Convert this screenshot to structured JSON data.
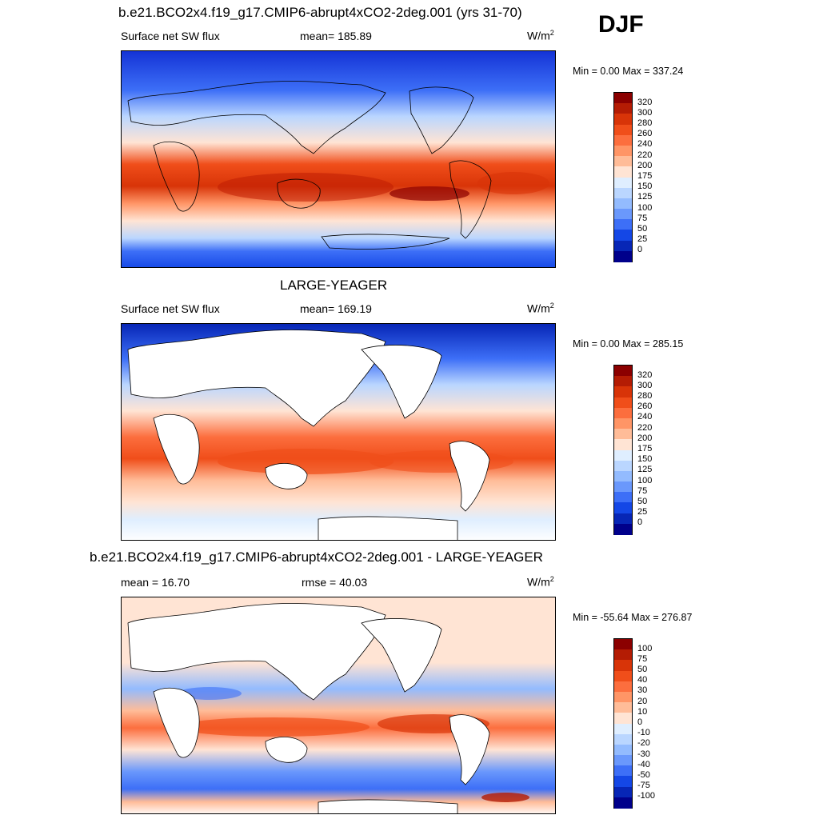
{
  "season": "DJF",
  "panels": [
    {
      "title": "b.e21.BCO2x4.f19_g17.CMIP6-abrupt4xCO2-2deg.001 (yrs 31-70)",
      "left_label": "Surface net SW flux",
      "center_label": "mean= 185.89",
      "units_base": "W/m",
      "units_exp": "2",
      "stats": "Min =   0.00 Max = 337.24",
      "land_masked": false,
      "colorbar": {
        "labels": [
          "320",
          "300",
          "280",
          "260",
          "240",
          "220",
          "200",
          "175",
          "150",
          "125",
          "100",
          "75",
          "50",
          "25",
          "0"
        ],
        "colors": [
          "#8b0000",
          "#b41c04",
          "#d83408",
          "#f04e1a",
          "#fc6e3e",
          "#ff9566",
          "#ffbc98",
          "#ffe4d4",
          "#dfeeff",
          "#bad6ff",
          "#93bbfe",
          "#6a98fc",
          "#3d6ff7",
          "#1447e6",
          "#0726b6",
          "#00008b"
        ]
      }
    },
    {
      "title": "LARGE-YEAGER",
      "left_label": "Surface net SW flux",
      "center_label": "mean= 169.19",
      "units_base": "W/m",
      "units_exp": "2",
      "stats": "Min =   0.00 Max = 285.15",
      "land_masked": true,
      "colorbar": {
        "labels": [
          "320",
          "300",
          "280",
          "260",
          "240",
          "220",
          "200",
          "175",
          "150",
          "125",
          "100",
          "75",
          "50",
          "25",
          "0"
        ],
        "colors": [
          "#8b0000",
          "#b41c04",
          "#d83408",
          "#f04e1a",
          "#fc6e3e",
          "#ff9566",
          "#ffbc98",
          "#ffe4d4",
          "#dfeeff",
          "#bad6ff",
          "#93bbfe",
          "#6a98fc",
          "#3d6ff7",
          "#1447e6",
          "#0726b6",
          "#00008b"
        ]
      }
    },
    {
      "title": "b.e21.BCO2x4.f19_g17.CMIP6-abrupt4xCO2-2deg.001 - LARGE-YEAGER",
      "left_label": "mean =  16.70",
      "center_label": "rmse =  40.03",
      "units_base": "W/m",
      "units_exp": "2",
      "stats": "Min = -55.64 Max = 276.87",
      "land_masked": true,
      "colorbar": {
        "labels": [
          "100",
          "75",
          "50",
          "40",
          "30",
          "20",
          "10",
          "0",
          "-10",
          "-20",
          "-30",
          "-40",
          "-50",
          "-75",
          "-100"
        ],
        "colors": [
          "#8b0000",
          "#b41c04",
          "#d83408",
          "#f04e1a",
          "#fc6e3e",
          "#ff9566",
          "#ffbc98",
          "#ffe4d4",
          "#dfeeff",
          "#bad6ff",
          "#93bbfe",
          "#6a98fc",
          "#3d6ff7",
          "#1447e6",
          "#0726b6",
          "#00008b"
        ]
      }
    }
  ]
}
